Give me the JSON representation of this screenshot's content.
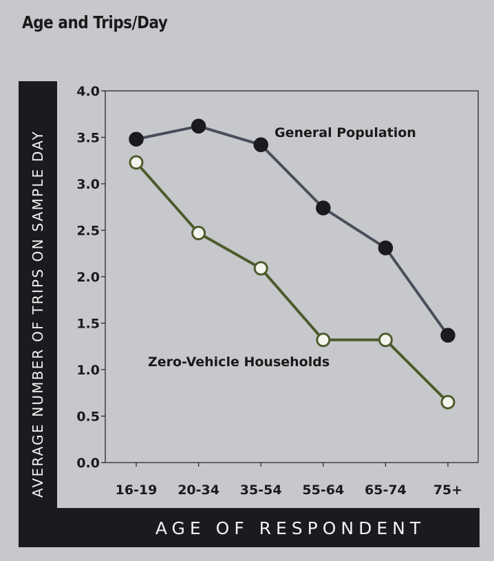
{
  "chart_data": {
    "type": "line",
    "title": "Age and Trips/Day",
    "xlabel": "AGE OF RESPONDENT",
    "ylabel": "AVERAGE NUMBER OF TRIPS ON SAMPLE DAY",
    "categories": [
      "16-19",
      "20-34",
      "35-54",
      "55-64",
      "65-74",
      "75+"
    ],
    "y_ticks": [
      "0.0",
      "0.5",
      "1.0",
      "1.5",
      "2.0",
      "2.5",
      "3.0",
      "3.5",
      "4.0"
    ],
    "ylim": [
      0,
      4
    ],
    "grid": false,
    "legend": "none",
    "series": [
      {
        "name": "General Population",
        "values": [
          3.48,
          3.62,
          3.42,
          2.74,
          2.31,
          1.37
        ],
        "line_color": "#4a4e5a",
        "marker_fill": "#1b1a1e",
        "marker_style": "filled"
      },
      {
        "name": "Zero-Vehicle Households",
        "values": [
          3.23,
          2.47,
          2.09,
          1.32,
          1.32,
          0.65
        ],
        "line_color": "#4e5a2c",
        "marker_fill": "#f4f4ee",
        "marker_style": "hollow"
      }
    ],
    "colors": {
      "background": "#c7c8cc",
      "label_bars": "#1b1a1e"
    }
  }
}
